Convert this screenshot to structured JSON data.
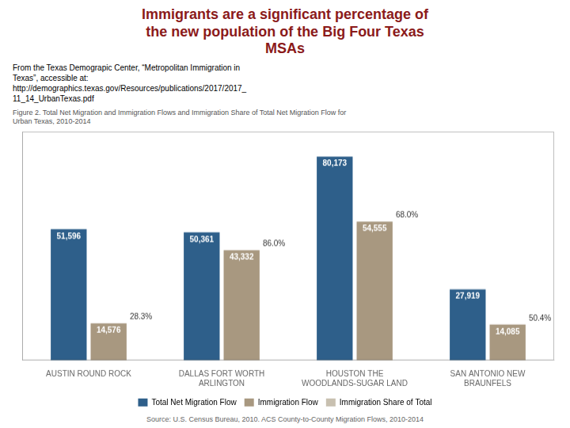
{
  "chart_data": {
    "type": "bar",
    "title": "Immigrants are a significant percentage of\nthe new population of the Big Four Texas\nMSAs",
    "title_color": "#8B1A1A",
    "subtitle": "From the Texas Demograpic Center, “Metropolitan Immigration in\nTexas”, accessible at:\nhttp://demographics.texas.gov/Resources/publications/2017/2017_\n11_14_UrbanTexas.pdf",
    "caption": "Figure 2. Total Net Migration and Immigration Flows and Immigration Share of Total Net Migration Flow for\nUrban Texas, 2010-2014",
    "source": "Source: U.S. Census Bureau, 2010. ACS County-to-County Migration Flows, 2010-2014",
    "categories": [
      "AUSTIN ROUND ROCK",
      "DALLAS FORT WORTH\nARLINGTON",
      "HOUSTON THE\nWOODLANDS-SUGAR LAND",
      "SAN ANTONIO NEW\nBRAUNFELS"
    ],
    "series": [
      {
        "name": "Total Net Migration Flow",
        "color": "#2E5F8A",
        "values": [
          51596,
          50361,
          80173,
          27919
        ],
        "value_labels": [
          "51,596",
          "50,361",
          "80,173",
          "27,919"
        ]
      },
      {
        "name": "Immigration Flow",
        "color": "#A89880",
        "values": [
          14576,
          43332,
          54555,
          14085
        ],
        "value_labels": [
          "14,576",
          "43,332",
          "54,555",
          "14,085"
        ]
      },
      {
        "name": "Immigration Share of Total",
        "color": "#C8C0B0",
        "type": "text",
        "values": [
          28.3,
          86.0,
          68.0,
          50.4
        ],
        "value_labels": [
          "28.3%",
          "86.0%",
          "68.0%",
          "50.4%"
        ]
      }
    ],
    "ylim": [
      0,
      90000
    ],
    "grid": false,
    "legend": "bottom",
    "data_labels": true,
    "tick_labels": "x"
  }
}
